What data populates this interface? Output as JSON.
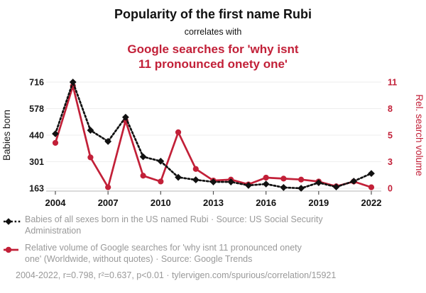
{
  "header": {
    "title": "Popularity of the first name Rubi",
    "connector": "correlates with",
    "secondary_title": "Google searches for 'why isnt\n11 pronounced onety one'"
  },
  "colors": {
    "accent_red": "#c22038",
    "primary_text": "#111111",
    "muted_text": "#999999",
    "gridline": "#ededed",
    "axis_line": "#b5b5b5"
  },
  "chart_data": {
    "type": "line",
    "title": "Popularity of the first name Rubi vs Google searches for 'why isnt 11 pronounced onety one'",
    "x": [
      2004,
      2005,
      2006,
      2007,
      2008,
      2009,
      2010,
      2011,
      2012,
      2013,
      2014,
      2015,
      2016,
      2017,
      2018,
      2019,
      2020,
      2021,
      2022
    ],
    "x_ticks": [
      2004,
      2007,
      2010,
      2013,
      2016,
      2019,
      2022
    ],
    "grid": true,
    "legend_position": "bottom",
    "left_axis": {
      "label": "Babies born",
      "ticks": [
        716,
        578,
        440,
        301,
        163
      ],
      "range": [
        163,
        716
      ],
      "color": "#1a1a1a"
    },
    "right_axis": {
      "label": "Rel. search volume",
      "ticks": [
        11,
        8,
        5,
        3,
        0
      ],
      "range": [
        0,
        11
      ],
      "color": "#c22038"
    },
    "series": [
      {
        "name": "Babies of all sexes born in the US named Rubi",
        "axis": "left",
        "color": "#111111",
        "line_style": "dotted",
        "marker": "diamond",
        "values": [
          447,
          716,
          465,
          407,
          533,
          327,
          304,
          220,
          207,
          196,
          196,
          178,
          185,
          167,
          163,
          192,
          170,
          200,
          240
        ]
      },
      {
        "name": "Relative volume of Google searches for 'why isnt 11 pronounced onety one'",
        "axis": "right",
        "color": "#c22038",
        "line_style": "solid",
        "marker": "circle",
        "values": [
          4.7,
          10.6,
          3.2,
          0.1,
          7.0,
          1.3,
          0.7,
          5.8,
          2.0,
          0.8,
          0.9,
          0.4,
          1.1,
          1.0,
          0.9,
          0.7,
          0.2,
          0.7,
          0.1
        ]
      }
    ]
  },
  "legend": {
    "items": [
      {
        "marker": "black-diamond-dotted-line",
        "text": "Babies of all sexes born in the US named Rubi · Source: US Social Security\nAdministration"
      },
      {
        "marker": "red-circle-solid-line",
        "text": "Relative volume of Google searches for 'why isnt 11 pronounced onety\none' (Worldwide, without quotes) · Source: Google Trends"
      }
    ]
  },
  "footer": {
    "stats_line": "2004-2022, r=0.798, r²=0.637, p<0.01 · tylervigen.com/spurious/correlation/15921"
  }
}
